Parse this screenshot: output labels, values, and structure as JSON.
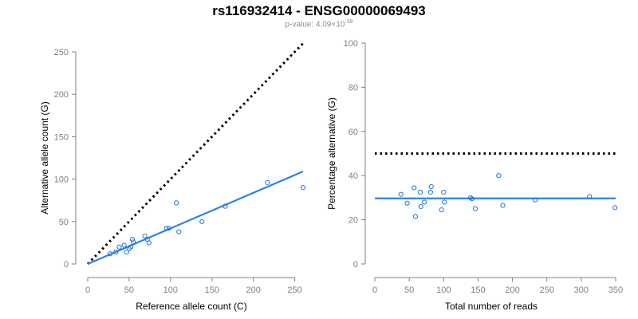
{
  "header": {
    "title": "rs116932414 - ENSG00000069493",
    "pvalue_prefix": "p-value: 4.09×10",
    "pvalue_exponent": "-38"
  },
  "colors": {
    "points": "#1f78d6",
    "fit": "#2b83e6",
    "reference": "#000000",
    "axis": "#7f7f7f"
  },
  "chart_data": [
    {
      "type": "scatter",
      "xlabel": "Reference allele count (C)",
      "ylabel": "Alternative allele count (G)",
      "xlim": [
        0,
        260
      ],
      "ylim": [
        0,
        250
      ],
      "xticks": [
        0,
        50,
        100,
        150,
        200,
        250
      ],
      "yticks": [
        0,
        50,
        100,
        150,
        200,
        250
      ],
      "points": [
        {
          "x": 27,
          "y": 12
        },
        {
          "x": 34,
          "y": 14
        },
        {
          "x": 38,
          "y": 20
        },
        {
          "x": 44,
          "y": 22
        },
        {
          "x": 47,
          "y": 14
        },
        {
          "x": 50,
          "y": 18
        },
        {
          "x": 52,
          "y": 20
        },
        {
          "x": 54,
          "y": 29
        },
        {
          "x": 55,
          "y": 26
        },
        {
          "x": 69,
          "y": 33
        },
        {
          "x": 72,
          "y": 29
        },
        {
          "x": 74,
          "y": 25
        },
        {
          "x": 95,
          "y": 42
        },
        {
          "x": 98,
          "y": 42
        },
        {
          "x": 107,
          "y": 72
        },
        {
          "x": 110,
          "y": 38
        },
        {
          "x": 138,
          "y": 50
        },
        {
          "x": 166,
          "y": 68
        },
        {
          "x": 217,
          "y": 96
        },
        {
          "x": 260,
          "y": 90
        }
      ],
      "fit_line": {
        "x": [
          0,
          260
        ],
        "y": [
          0,
          109
        ]
      },
      "reference_line": {
        "x": [
          0,
          260
        ],
        "y": [
          0,
          260
        ]
      }
    },
    {
      "type": "scatter",
      "xlabel": "Total number of reads",
      "ylabel": "Percentage alternative (G)",
      "xlim": [
        0,
        350
      ],
      "ylim": [
        0,
        100
      ],
      "xticks": [
        0,
        50,
        100,
        150,
        200,
        250,
        300,
        350
      ],
      "yticks": [
        0,
        20,
        40,
        60,
        80,
        100
      ],
      "points": [
        {
          "x": 38,
          "y": 31.5
        },
        {
          "x": 47,
          "y": 27.5
        },
        {
          "x": 57,
          "y": 34.5
        },
        {
          "x": 59,
          "y": 21.5
        },
        {
          "x": 66,
          "y": 32.5
        },
        {
          "x": 67,
          "y": 26
        },
        {
          "x": 72,
          "y": 28
        },
        {
          "x": 81,
          "y": 32.5
        },
        {
          "x": 82,
          "y": 35
        },
        {
          "x": 97,
          "y": 24.5
        },
        {
          "x": 100,
          "y": 32.5
        },
        {
          "x": 101,
          "y": 28
        },
        {
          "x": 139,
          "y": 30
        },
        {
          "x": 141,
          "y": 29.5
        },
        {
          "x": 146,
          "y": 25
        },
        {
          "x": 180,
          "y": 40
        },
        {
          "x": 186,
          "y": 26.5
        },
        {
          "x": 233,
          "y": 29
        },
        {
          "x": 312,
          "y": 30.5
        },
        {
          "x": 349,
          "y": 25.5
        }
      ],
      "fit_line": {
        "x": [
          0,
          350
        ],
        "y": [
          29.7,
          29.7
        ]
      },
      "reference_line": {
        "x": [
          0,
          350
        ],
        "y": [
          50,
          50
        ]
      }
    }
  ]
}
